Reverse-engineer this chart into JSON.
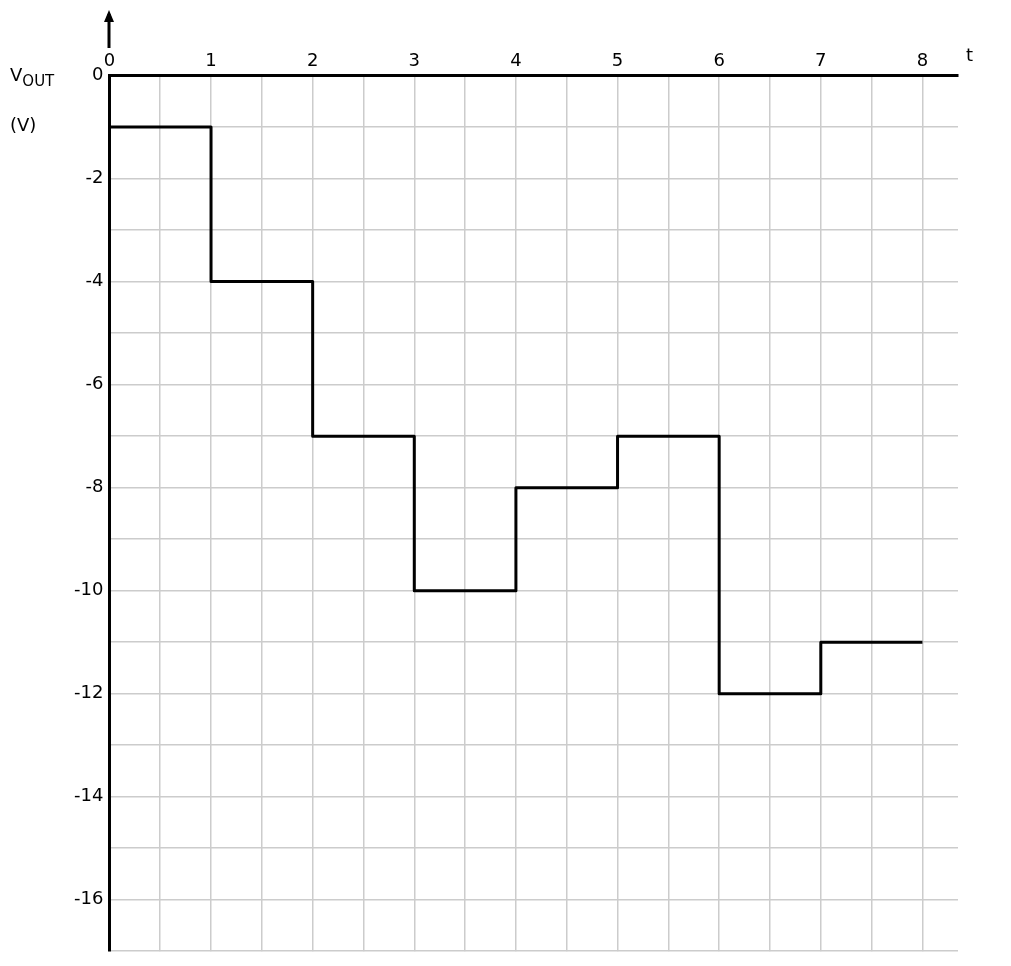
{
  "chart_data": {
    "type": "step",
    "xlabel": "t",
    "ylabel": "V$_{OUT}$ (V)",
    "x": [
      0,
      1,
      2,
      3,
      4,
      5,
      6,
      7,
      8
    ],
    "series": [
      {
        "color": "#000000",
        "values": [
          -1,
          -4,
          -7,
          -10,
          -8,
          -7,
          -12,
          -11,
          -11
        ]
      }
    ],
    "xlim": [
      0,
      8.35
    ],
    "ylim": [
      -17,
      0
    ],
    "xticks": [
      0,
      {
        "value": 0.5,
        "label": null
      },
      1,
      {
        "value": 1.5,
        "label": null
      },
      2,
      {
        "value": 2.5,
        "label": null
      },
      3,
      {
        "value": 3.5,
        "label": null
      },
      4,
      {
        "value": 4.5,
        "label": null
      },
      5,
      {
        "value": 5.5,
        "label": null
      },
      6,
      {
        "value": 6.5,
        "label": null
      },
      7,
      {
        "value": 7.5,
        "label": null
      },
      8
    ],
    "yticks": [
      0,
      {
        "value": -1,
        "label": null
      },
      -2,
      {
        "value": -3,
        "label": null
      },
      -4,
      {
        "value": -5,
        "label": null
      },
      -6,
      {
        "value": -7,
        "label": null
      },
      -8,
      {
        "value": -9,
        "label": null
      },
      -10,
      {
        "value": -11,
        "label": null
      },
      -12,
      {
        "value": -13,
        "label": null
      },
      -14,
      {
        "value": -15,
        "label": null
      },
      -16,
      {
        "value": -17,
        "label": null
      }
    ],
    "grid": true,
    "legend": false,
    "marker": "none",
    "line_style": "solid"
  }
}
